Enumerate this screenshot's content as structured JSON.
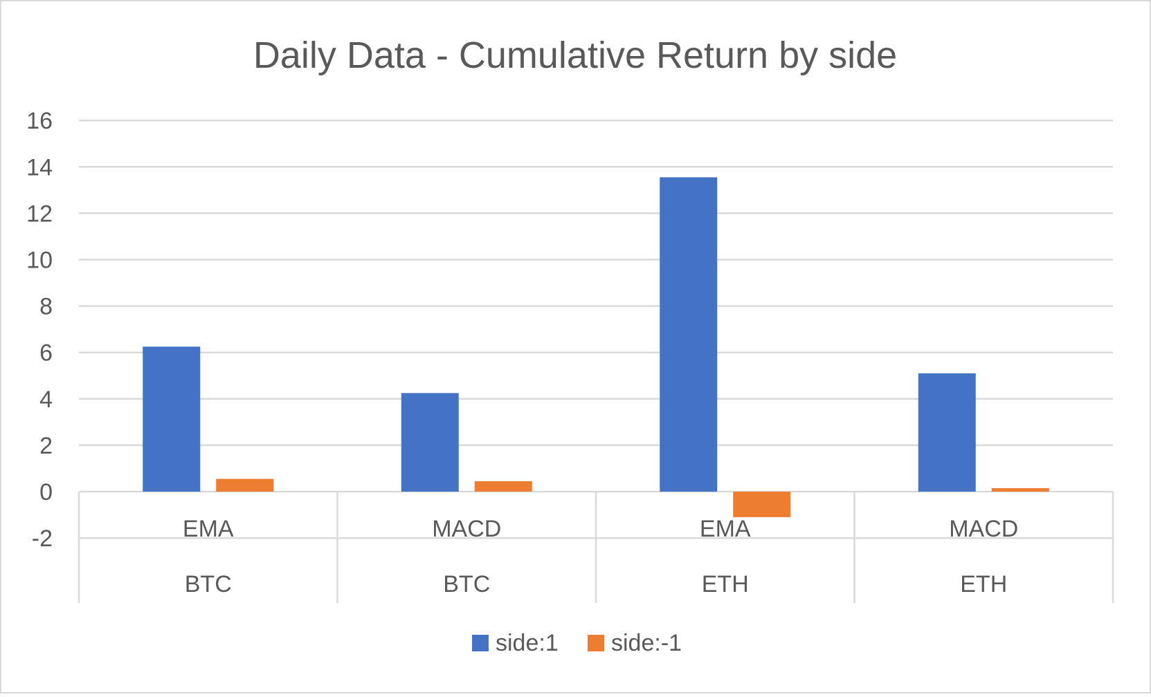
{
  "chart_data": {
    "type": "bar",
    "title": "Daily Data - Cumulative Return by side",
    "categories": [
      {
        "strategy": "EMA",
        "asset": "BTC"
      },
      {
        "strategy": "MACD",
        "asset": "BTC"
      },
      {
        "strategy": "EMA",
        "asset": "ETH"
      },
      {
        "strategy": "MACD",
        "asset": "ETH"
      }
    ],
    "series": [
      {
        "name": "side:1",
        "color": "#4472C4",
        "values": [
          6.25,
          4.25,
          13.55,
          5.1
        ]
      },
      {
        "name": "side:-1",
        "color": "#ED7D31",
        "values": [
          0.55,
          0.45,
          -1.1,
          0.15
        ]
      }
    ],
    "y_ticks": [
      -2,
      0,
      2,
      4,
      6,
      8,
      10,
      12,
      14,
      16
    ],
    "ylim": [
      -2,
      16
    ],
    "grid": true,
    "legend_position": "bottom",
    "colors": {
      "title": "#595959",
      "tick_label": "#595959",
      "gridline": "#D9D9D9",
      "border": "#D9D9D9"
    }
  }
}
